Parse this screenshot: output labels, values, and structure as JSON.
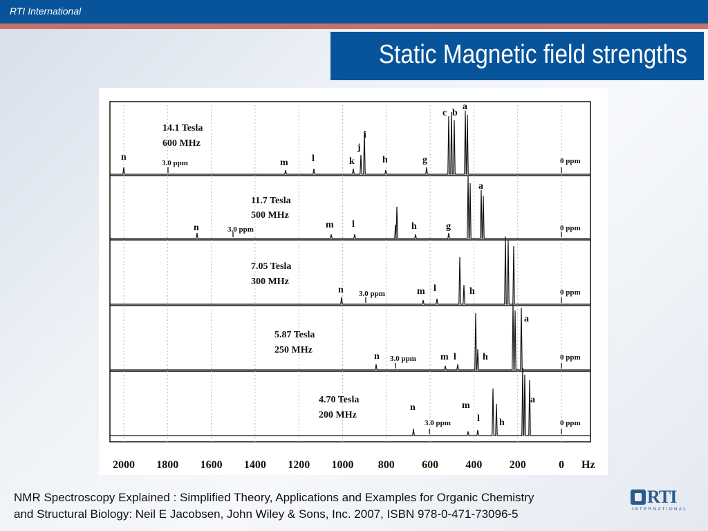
{
  "header": {
    "organization": "RTI International",
    "title": "Static Magnetic field strengths"
  },
  "caption": {
    "line1": "NMR Spectroscopy Explained : Simplified Theory, Applications and Examples for Organic Chemistry",
    "line2": "and Structural Biology: Neil E Jacobsen, John Wiley & Sons, Inc. 2007, ISBN 978-0-471-73096-5"
  },
  "logo": {
    "text": "RTI",
    "subtext": "INTERNATIONAL",
    "icon": "rti-logo-icon"
  },
  "colors": {
    "brand_blue": "#07549a",
    "accent_stripe": "#c8706a"
  },
  "figure": {
    "axis_unit": "Hz",
    "ticks": [
      2000,
      1800,
      1600,
      1400,
      1200,
      1000,
      800,
      600,
      400,
      200,
      0
    ],
    "panels": [
      {
        "field": "14.1 Tesla",
        "freq": "600 MHz",
        "ref_label": "3.0 ppm",
        "zero_label": "0 ppm",
        "peaks": [
          "n",
          "m",
          "l",
          "k",
          "j",
          "i",
          "h",
          "g",
          "c",
          "b",
          "a"
        ]
      },
      {
        "field": "11.7 Tesla",
        "freq": "500 MHz",
        "ref_label": "3.0 ppm",
        "zero_label": "0 ppm",
        "peaks": [
          "n",
          "m",
          "l",
          "h",
          "g",
          "a"
        ]
      },
      {
        "field": "7.05 Tesla",
        "freq": "300 MHz",
        "ref_label": "3.0 ppm",
        "zero_label": "0 ppm",
        "peaks": [
          "n",
          "m",
          "l",
          "h"
        ]
      },
      {
        "field": "5.87 Tesla",
        "freq": "250 MHz",
        "ref_label": "3.0 ppm",
        "zero_label": "0 ppm",
        "peaks": [
          "n",
          "m",
          "l",
          "h",
          "a"
        ]
      },
      {
        "field": "4.70 Tesla",
        "freq": "200 MHz",
        "ref_label": "3.0 ppm",
        "zero_label": "0 ppm",
        "peaks": [
          "n",
          "m",
          "l",
          "h",
          "a"
        ]
      }
    ]
  }
}
